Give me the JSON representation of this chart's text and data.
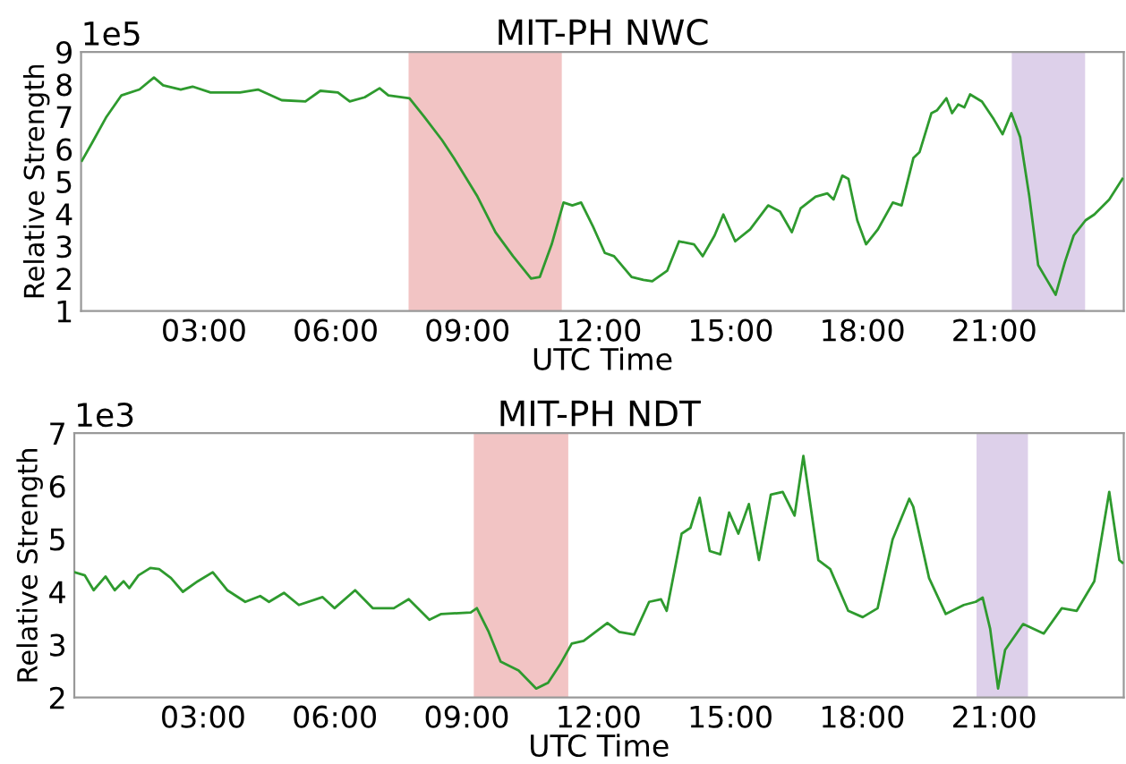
{
  "chart_data": [
    {
      "type": "line",
      "title": "MIT-PH NWC",
      "xlabel": "UTC Time",
      "ylabel": "Relative Strength",
      "annotations": [
        "1e5"
      ],
      "xlim": [
        0.2,
        23.95
      ],
      "xticks": [
        {
          "value": 3,
          "label": "03:00"
        },
        {
          "value": 6,
          "label": "06:00"
        },
        {
          "value": 9,
          "label": "09:00"
        },
        {
          "value": 12,
          "label": "12:00"
        },
        {
          "value": 15,
          "label": "15:00"
        },
        {
          "value": 18,
          "label": "18:00"
        },
        {
          "value": 21,
          "label": "21:00"
        }
      ],
      "ylim": [
        1,
        9
      ],
      "yticks": [
        1,
        2,
        3,
        4,
        5,
        6,
        7,
        8,
        9
      ],
      "grid": false,
      "legend": false,
      "bands": [
        {
          "axis": "x",
          "from": 7.66,
          "to": 11.15,
          "color": "#f2c4c4"
        },
        {
          "axis": "x",
          "from": 21.4,
          "to": 23.07,
          "color": "#ddd0ea"
        }
      ],
      "series": [
        {
          "color": "#2e9a2e",
          "x": [
            0.22,
            0.45,
            0.78,
            1.12,
            1.53,
            1.86,
            2.07,
            2.47,
            2.74,
            3.15,
            3.55,
            3.82,
            4.23,
            4.77,
            5.31,
            5.65,
            6.05,
            6.32,
            6.66,
            7.0,
            7.2,
            7.68,
            8.01,
            8.42,
            8.69,
            9.23,
            9.64,
            10.04,
            10.45,
            10.65,
            10.92,
            11.19,
            11.39,
            11.59,
            11.86,
            12.13,
            12.34,
            12.74,
            13.01,
            13.21,
            13.55,
            13.82,
            14.16,
            14.36,
            14.63,
            14.83,
            15.1,
            15.44,
            15.85,
            16.12,
            16.39,
            16.59,
            16.93,
            17.2,
            17.34,
            17.54,
            17.68,
            17.88,
            18.08,
            18.35,
            18.69,
            18.89,
            19.16,
            19.3,
            19.57,
            19.7,
            19.91,
            20.04,
            20.18,
            20.32,
            20.45,
            20.72,
            20.99,
            21.19,
            21.39,
            21.59,
            21.8,
            22.0,
            22.2,
            22.4,
            22.61,
            22.81,
            23.08,
            23.28,
            23.62,
            23.92
          ],
          "values": [
            5.64,
            6.19,
            7.0,
            7.66,
            7.84,
            8.21,
            7.97,
            7.84,
            7.93,
            7.75,
            7.75,
            7.75,
            7.84,
            7.51,
            7.47,
            7.8,
            7.75,
            7.47,
            7.6,
            7.88,
            7.66,
            7.57,
            7.01,
            6.28,
            5.73,
            4.53,
            3.43,
            2.69,
            2.0,
            2.05,
            3.06,
            4.35,
            4.26,
            4.35,
            3.61,
            2.79,
            2.69,
            2.05,
            1.96,
            1.92,
            2.24,
            3.15,
            3.06,
            2.69,
            3.33,
            3.98,
            3.15,
            3.52,
            4.26,
            4.07,
            3.43,
            4.17,
            4.53,
            4.63,
            4.44,
            5.18,
            5.08,
            3.8,
            3.06,
            3.52,
            4.35,
            4.26,
            5.73,
            5.91,
            7.11,
            7.2,
            7.57,
            7.11,
            7.38,
            7.29,
            7.69,
            7.47,
            6.92,
            6.46,
            7.11,
            6.37,
            4.53,
            2.42,
            1.96,
            1.5,
            2.51,
            3.33,
            3.8,
            3.98,
            4.44,
            5.08
          ]
        }
      ]
    },
    {
      "type": "line",
      "title": "MIT-PH NDT",
      "xlabel": "UTC Time",
      "ylabel": "Relative Strength",
      "annotations": [
        "1e3"
      ],
      "xlim": [
        0.07,
        23.95
      ],
      "xticks": [
        {
          "value": 3,
          "label": "03:00"
        },
        {
          "value": 6,
          "label": "06:00"
        },
        {
          "value": 9,
          "label": "09:00"
        },
        {
          "value": 12,
          "label": "12:00"
        },
        {
          "value": 15,
          "label": "15:00"
        },
        {
          "value": 18,
          "label": "18:00"
        },
        {
          "value": 21,
          "label": "21:00"
        }
      ],
      "ylim": [
        2,
        7
      ],
      "yticks": [
        2,
        3,
        4,
        5,
        6,
        7
      ],
      "grid": false,
      "legend": false,
      "bands": [
        {
          "axis": "x",
          "from": 9.16,
          "to": 11.31,
          "color": "#f2c4c4"
        },
        {
          "axis": "x",
          "from": 20.6,
          "to": 21.77,
          "color": "#ddd0ea"
        }
      ],
      "series": [
        {
          "color": "#2e9a2e",
          "x": [
            0.07,
            0.31,
            0.51,
            0.78,
            0.99,
            1.19,
            1.32,
            1.53,
            1.8,
            2.0,
            2.27,
            2.54,
            2.88,
            3.22,
            3.55,
            3.96,
            4.3,
            4.5,
            4.84,
            5.18,
            5.72,
            5.99,
            6.46,
            6.86,
            7.34,
            7.68,
            8.15,
            8.42,
            9.09,
            9.23,
            9.5,
            9.77,
            10.18,
            10.58,
            10.85,
            11.12,
            11.39,
            11.66,
            12.2,
            12.47,
            12.81,
            13.15,
            13.42,
            13.55,
            13.89,
            14.09,
            14.3,
            14.53,
            14.77,
            14.97,
            15.18,
            15.42,
            15.65,
            15.92,
            16.19,
            16.46,
            16.66,
            17.0,
            17.27,
            17.68,
            18.01,
            18.35,
            18.69,
            19.07,
            19.16,
            19.52,
            19.9,
            20.31,
            20.58,
            20.74,
            20.91,
            21.09,
            21.25,
            21.66,
            22.13,
            22.54,
            22.88,
            23.28,
            23.62,
            23.85,
            23.92
          ],
          "values": [
            4.37,
            4.31,
            4.03,
            4.29,
            4.03,
            4.2,
            4.07,
            4.31,
            4.45,
            4.43,
            4.26,
            4.0,
            4.2,
            4.37,
            4.03,
            3.81,
            3.92,
            3.81,
            3.98,
            3.75,
            3.9,
            3.69,
            4.03,
            3.69,
            3.69,
            3.86,
            3.47,
            3.58,
            3.61,
            3.69,
            3.24,
            2.68,
            2.51,
            2.17,
            2.28,
            2.62,
            3.02,
            3.07,
            3.41,
            3.24,
            3.19,
            3.81,
            3.86,
            3.64,
            5.1,
            5.21,
            5.78,
            4.77,
            4.71,
            5.5,
            5.1,
            5.66,
            4.6,
            5.84,
            5.89,
            5.44,
            6.57,
            4.6,
            4.43,
            3.64,
            3.52,
            3.69,
            4.99,
            5.76,
            5.61,
            4.26,
            3.58,
            3.75,
            3.81,
            3.89,
            3.3,
            2.17,
            2.9,
            3.39,
            3.21,
            3.69,
            3.64,
            4.2,
            5.89,
            4.6,
            4.55
          ]
        }
      ]
    }
  ]
}
